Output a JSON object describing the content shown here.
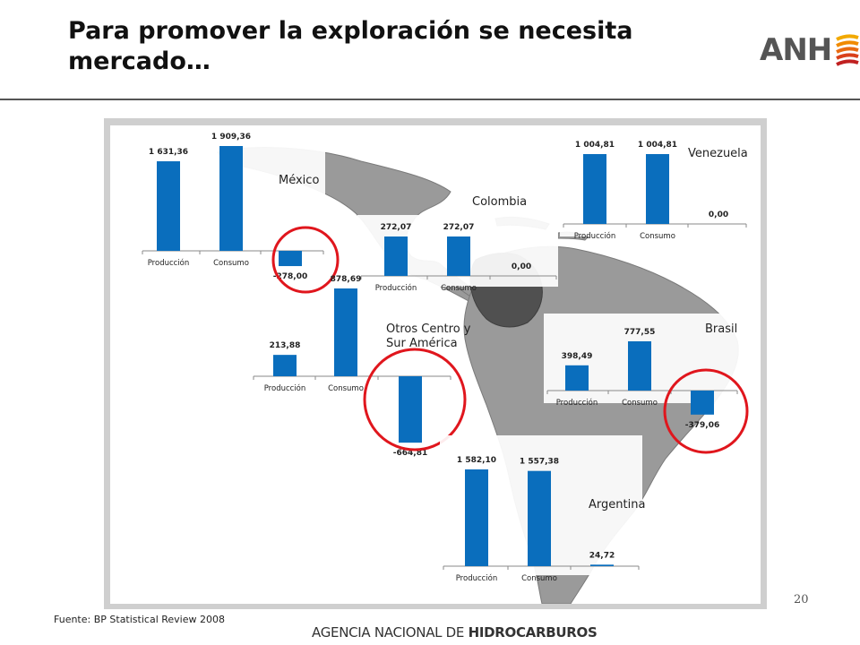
{
  "slide": {
    "title_line1": "Para promover la exploración se necesita",
    "title_line2": "mercado…",
    "logo_text": "ANH",
    "source": "Fuente: BP Statistical Review 2008",
    "page_number": "20",
    "agency_part1": "AGENCIA NACIONAL DE ",
    "agency_part2": "HIDROCARBUROS"
  },
  "colors": {
    "bar": "#0a6ebd",
    "circle": "#e0161d",
    "land": "#8f8f8f",
    "highlight": "#505050"
  },
  "regions": [
    {
      "name": "México"
    },
    {
      "name": "Colombia"
    },
    {
      "name": "Venezuela"
    },
    {
      "name": "Otros Centro y Sur América"
    },
    {
      "name": "Brasil"
    },
    {
      "name": "Argentina"
    }
  ],
  "chart_data": [
    {
      "type": "bar",
      "region": "México",
      "categories": [
        "Producción",
        "Consumo",
        ""
      ],
      "values": [
        1631.36,
        1909.36,
        -278.0
      ],
      "labels": [
        "1 631,36",
        "1 909,36",
        "-278,00"
      ]
    },
    {
      "type": "bar",
      "region": "Colombia",
      "categories": [
        "Producción",
        "Consumo",
        ""
      ],
      "values": [
        272.07,
        272.07,
        0.0
      ],
      "labels": [
        "272,07",
        "272,07",
        "0,00"
      ]
    },
    {
      "type": "bar",
      "region": "Venezuela",
      "categories": [
        "Producción",
        "Consumo",
        ""
      ],
      "values": [
        1004.81,
        1004.81,
        0.0
      ],
      "labels": [
        "1 004,81",
        "1 004,81",
        "0,00"
      ]
    },
    {
      "type": "bar",
      "region": "Otros Centro y Sur América",
      "categories": [
        "Producción",
        "Consumo",
        ""
      ],
      "values": [
        213.88,
        878.69,
        -664.81
      ],
      "labels": [
        "213,88",
        "878,69",
        "-664,81"
      ]
    },
    {
      "type": "bar",
      "region": "Brasil",
      "categories": [
        "Producción",
        "Consumo",
        ""
      ],
      "values": [
        398.49,
        777.55,
        -379.06
      ],
      "labels": [
        "398,49",
        "777,55",
        "-379,06"
      ]
    },
    {
      "type": "bar",
      "region": "Argentina",
      "categories": [
        "Producción",
        "Consumo",
        ""
      ],
      "values": [
        1582.1,
        1557.38,
        24.72
      ],
      "labels": [
        "1 582,10",
        "1 557,38",
        "24,72"
      ]
    }
  ]
}
